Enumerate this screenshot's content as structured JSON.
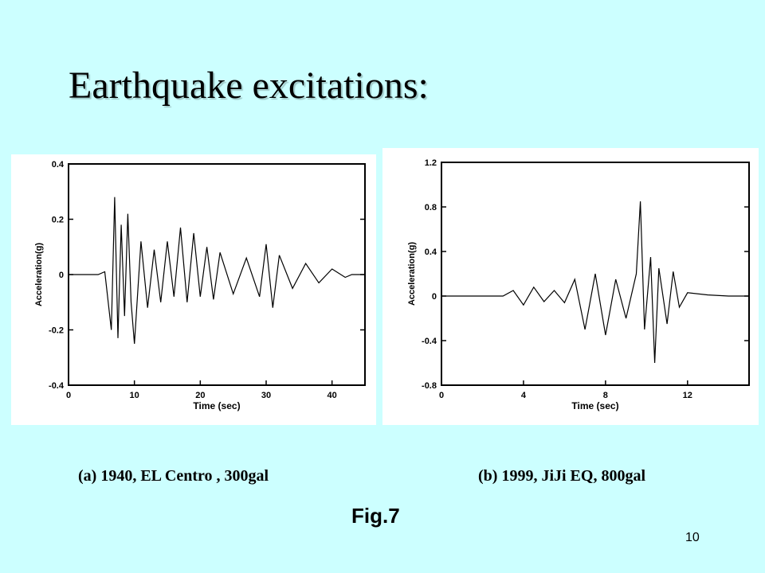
{
  "slide": {
    "title": "Earthquake excitations:",
    "caption_a": "(a)  1940, EL Centro , 300gal",
    "caption_b": "(b) 1999, JiJi EQ, 800gal",
    "figure_label": "Fig.7",
    "page_number": "10"
  },
  "chart_data": [
    {
      "type": "line",
      "xlabel": "Time (sec)",
      "ylabel": "Acceleration(g)",
      "xlim": [
        0,
        45
      ],
      "ylim": [
        -0.4,
        0.4
      ],
      "xticks": [
        "0",
        "10",
        "20",
        "30",
        "40"
      ],
      "yticks": [
        "0.4",
        "0.2",
        "0",
        "-0.2",
        "-0.4"
      ],
      "grid": false,
      "series": [
        {
          "x": [
            0,
            4.5,
            5.5,
            6.5,
            7.0,
            7.5,
            8.0,
            8.5,
            9.0,
            9.5,
            10.0,
            11.0,
            12.0,
            13.0,
            14.0,
            15.0,
            16.0,
            17.0,
            18.0,
            19.0,
            20.0,
            21.0,
            22.0,
            23.0,
            25.0,
            27.0,
            29.0,
            30.0,
            31.0,
            32.0,
            34.0,
            36.0,
            38.0,
            40.0,
            42.0,
            43.0,
            45.0
          ],
          "y": [
            0,
            0,
            0.01,
            -0.2,
            0.28,
            -0.23,
            0.18,
            -0.15,
            0.22,
            -0.1,
            -0.25,
            0.12,
            -0.12,
            0.09,
            -0.1,
            0.12,
            -0.08,
            0.17,
            -0.1,
            0.15,
            -0.08,
            0.1,
            -0.09,
            0.08,
            -0.07,
            0.06,
            -0.08,
            0.11,
            -0.12,
            0.07,
            -0.05,
            0.04,
            -0.03,
            0.02,
            -0.01,
            0,
            0
          ]
        }
      ]
    },
    {
      "type": "line",
      "xlabel": "Time (sec)",
      "ylabel": "Acceleration(g)",
      "xlim": [
        0,
        15
      ],
      "ylim": [
        -0.8,
        1.2
      ],
      "xticks": [
        "0",
        "4",
        "8",
        "12"
      ],
      "yticks": [
        "1.2",
        "0.8",
        "0.4",
        "0",
        "-0.4",
        "-0.8"
      ],
      "grid": false,
      "series": [
        {
          "x": [
            0,
            3.0,
            3.5,
            4.0,
            4.5,
            5.0,
            5.5,
            6.0,
            6.5,
            7.0,
            7.5,
            8.0,
            8.5,
            9.0,
            9.5,
            9.7,
            9.9,
            10.2,
            10.4,
            10.6,
            11.0,
            11.3,
            11.6,
            12.0,
            13.0,
            14.0,
            15.0
          ],
          "y": [
            0,
            0,
            0.05,
            -0.08,
            0.08,
            -0.05,
            0.05,
            -0.06,
            0.15,
            -0.3,
            0.2,
            -0.35,
            0.15,
            -0.2,
            0.2,
            0.85,
            -0.3,
            0.35,
            -0.6,
            0.25,
            -0.25,
            0.22,
            -0.1,
            0.03,
            0.01,
            0,
            0
          ]
        }
      ]
    }
  ]
}
